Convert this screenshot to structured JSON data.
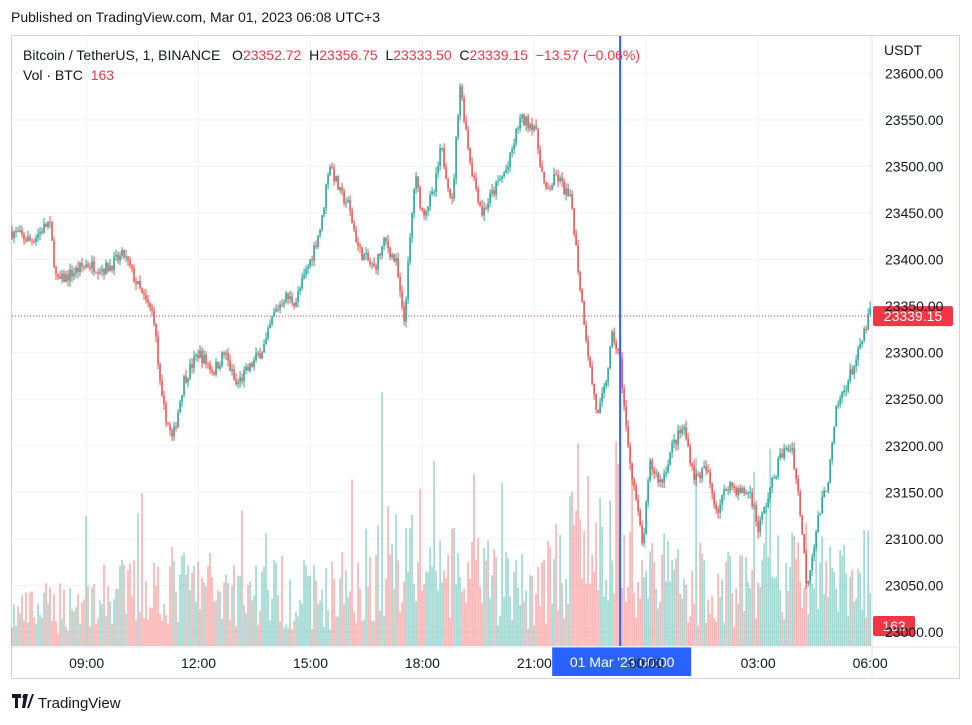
{
  "published": "Published on TradingView.com, Mar 01, 2023 06:08 UTC+3",
  "legend": {
    "symbol": "Bitcoin / TetherUS, 1, BINANCE",
    "o_label": "O",
    "o": "23352.72",
    "h_label": "H",
    "h": "23356.75",
    "l_label": "L",
    "l": "23333.50",
    "c_label": "C",
    "c": "23339.15",
    "change": "−13.57 (−0.06%)",
    "vol_label": "Vol · BTC",
    "vol": "163"
  },
  "footer": {
    "brand": "TradingView"
  },
  "colors": {
    "up": "#26a69a",
    "down": "#ef5350",
    "crosshair": "#2962ff",
    "price_tag": "#f23645",
    "grid": "#f0f3fa"
  },
  "chart_data": {
    "type": "candlestick",
    "currency_label": "USDT",
    "y_ticks": [
      23000,
      23050,
      23100,
      23150,
      23200,
      23250,
      23300,
      23350,
      23400,
      23450,
      23500,
      23550,
      23600
    ],
    "y_tick_labels": [
      "23000.00",
      "23050.00",
      "23100.00",
      "23150.00",
      "23200.00",
      "23250.00",
      "23300.00",
      "23350.00",
      "23400.00",
      "23450.00",
      "23500.00",
      "23550.00",
      "23600.00"
    ],
    "ylim": [
      22985,
      23640
    ],
    "x_ticks": [
      "09:00",
      "12:00",
      "15:00",
      "18:00",
      "21:00",
      "00:00",
      "03:00",
      "06:00"
    ],
    "x_tick_hours": [
      9,
      12,
      15,
      18,
      21,
      24,
      27,
      30
    ],
    "xlim_hours": [
      7.0,
      30.05
    ],
    "crosshair": {
      "hour": 23.3,
      "label_date": "01 Mar '23",
      "label_time": "00:00"
    },
    "last_price": 23339.15,
    "last_price_label": "23339.15",
    "last_volume_label": "163",
    "price_path": [
      [
        7.0,
        23430
      ],
      [
        7.5,
        23420
      ],
      [
        8.0,
        23440
      ],
      [
        8.2,
        23375
      ],
      [
        8.6,
        23385
      ],
      [
        9.0,
        23395
      ],
      [
        9.5,
        23390
      ],
      [
        10.0,
        23405
      ],
      [
        10.5,
        23360
      ],
      [
        10.8,
        23340
      ],
      [
        11.0,
        23250
      ],
      [
        11.3,
        23205
      ],
      [
        11.6,
        23270
      ],
      [
        12.0,
        23300
      ],
      [
        12.4,
        23280
      ],
      [
        12.7,
        23300
      ],
      [
        13.0,
        23265
      ],
      [
        13.4,
        23285
      ],
      [
        13.8,
        23310
      ],
      [
        14.0,
        23340
      ],
      [
        14.3,
        23360
      ],
      [
        14.6,
        23355
      ],
      [
        15.0,
        23400
      ],
      [
        15.3,
        23440
      ],
      [
        15.5,
        23505
      ],
      [
        15.8,
        23470
      ],
      [
        16.0,
        23460
      ],
      [
        16.3,
        23410
      ],
      [
        16.7,
        23390
      ],
      [
        17.0,
        23420
      ],
      [
        17.3,
        23395
      ],
      [
        17.5,
        23330
      ],
      [
        17.8,
        23490
      ],
      [
        18.0,
        23450
      ],
      [
        18.3,
        23470
      ],
      [
        18.5,
        23520
      ],
      [
        18.8,
        23460
      ],
      [
        19.0,
        23590
      ],
      [
        19.3,
        23500
      ],
      [
        19.6,
        23450
      ],
      [
        20.0,
        23480
      ],
      [
        20.3,
        23500
      ],
      [
        20.6,
        23550
      ],
      [
        21.0,
        23545
      ],
      [
        21.3,
        23470
      ],
      [
        21.6,
        23490
      ],
      [
        22.0,
        23460
      ],
      [
        22.2,
        23380
      ],
      [
        22.5,
        23280
      ],
      [
        22.7,
        23230
      ],
      [
        22.9,
        23265
      ],
      [
        23.1,
        23320
      ],
      [
        23.3,
        23290
      ],
      [
        23.5,
        23200
      ],
      [
        23.7,
        23150
      ],
      [
        23.9,
        23090
      ],
      [
        24.1,
        23180
      ],
      [
        24.4,
        23160
      ],
      [
        24.7,
        23200
      ],
      [
        25.0,
        23220
      ],
      [
        25.3,
        23165
      ],
      [
        25.6,
        23175
      ],
      [
        25.9,
        23130
      ],
      [
        26.2,
        23160
      ],
      [
        26.5,
        23150
      ],
      [
        26.8,
        23150
      ],
      [
        27.0,
        23110
      ],
      [
        27.3,
        23150
      ],
      [
        27.6,
        23190
      ],
      [
        27.9,
        23200
      ],
      [
        28.1,
        23140
      ],
      [
        28.3,
        23050
      ],
      [
        28.6,
        23120
      ],
      [
        28.9,
        23170
      ],
      [
        29.1,
        23240
      ],
      [
        29.4,
        23270
      ],
      [
        29.7,
        23300
      ],
      [
        30.0,
        23345
      ]
    ],
    "volume_path": [
      [
        7.0,
        9
      ],
      [
        11.0,
        18
      ],
      [
        15.5,
        15
      ],
      [
        17.8,
        30
      ],
      [
        18.3,
        22
      ],
      [
        21.0,
        16
      ],
      [
        22.4,
        32
      ],
      [
        23.3,
        24
      ],
      [
        24.0,
        22
      ],
      [
        26.0,
        17
      ],
      [
        28.3,
        22
      ],
      [
        30.0,
        16
      ]
    ],
    "volume_ylim": [
      0,
      38
    ]
  }
}
